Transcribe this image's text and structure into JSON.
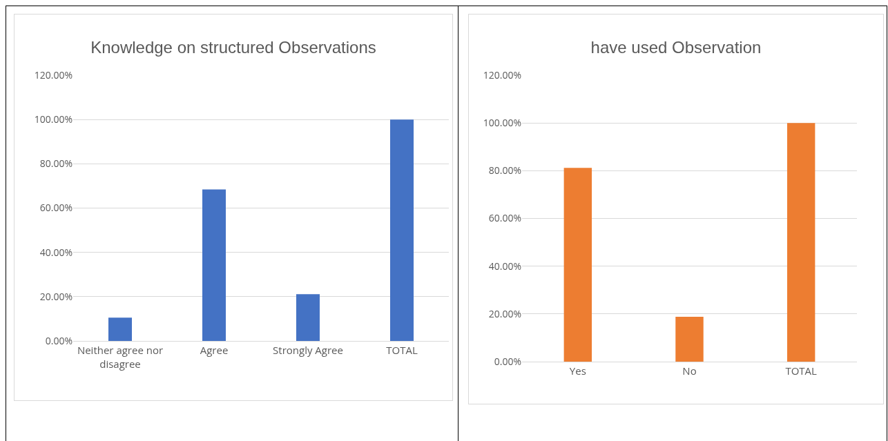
{
  "chart_data": [
    {
      "type": "bar",
      "title": "Knowledge on structured Observations",
      "categories": [
        "Neither agree nor disagree",
        "Agree",
        "Strongly Agree",
        "TOTAL"
      ],
      "values": [
        10.5,
        68.4,
        21.1,
        100
      ],
      "color": "#4472c4",
      "ylim": [
        0,
        120
      ],
      "yticks": [
        {
          "value": 0,
          "label": "0.00%"
        },
        {
          "value": 20,
          "label": "20.00%"
        },
        {
          "value": 40,
          "label": "40.00%"
        },
        {
          "value": 60,
          "label": "60.00%"
        },
        {
          "value": 80,
          "label": "80.00%"
        },
        {
          "value": 100,
          "label": "100.00%"
        },
        {
          "value": 120,
          "label": "120.00%"
        }
      ],
      "grid": "y"
    },
    {
      "type": "bar",
      "title": "have used Observation",
      "categories": [
        "Yes",
        "No",
        "TOTAL"
      ],
      "values": [
        81.2,
        18.8,
        100
      ],
      "color": "#ed7d31",
      "ylim": [
        0,
        120
      ],
      "yticks": [
        {
          "value": 0,
          "label": "0.00%"
        },
        {
          "value": 20,
          "label": "20.00%"
        },
        {
          "value": 40,
          "label": "40.00%"
        },
        {
          "value": 60,
          "label": "60.00%"
        },
        {
          "value": 80,
          "label": "80.00%"
        },
        {
          "value": 100,
          "label": "100.00%"
        },
        {
          "value": 120,
          "label": "120.00%"
        }
      ],
      "grid": "y"
    }
  ]
}
